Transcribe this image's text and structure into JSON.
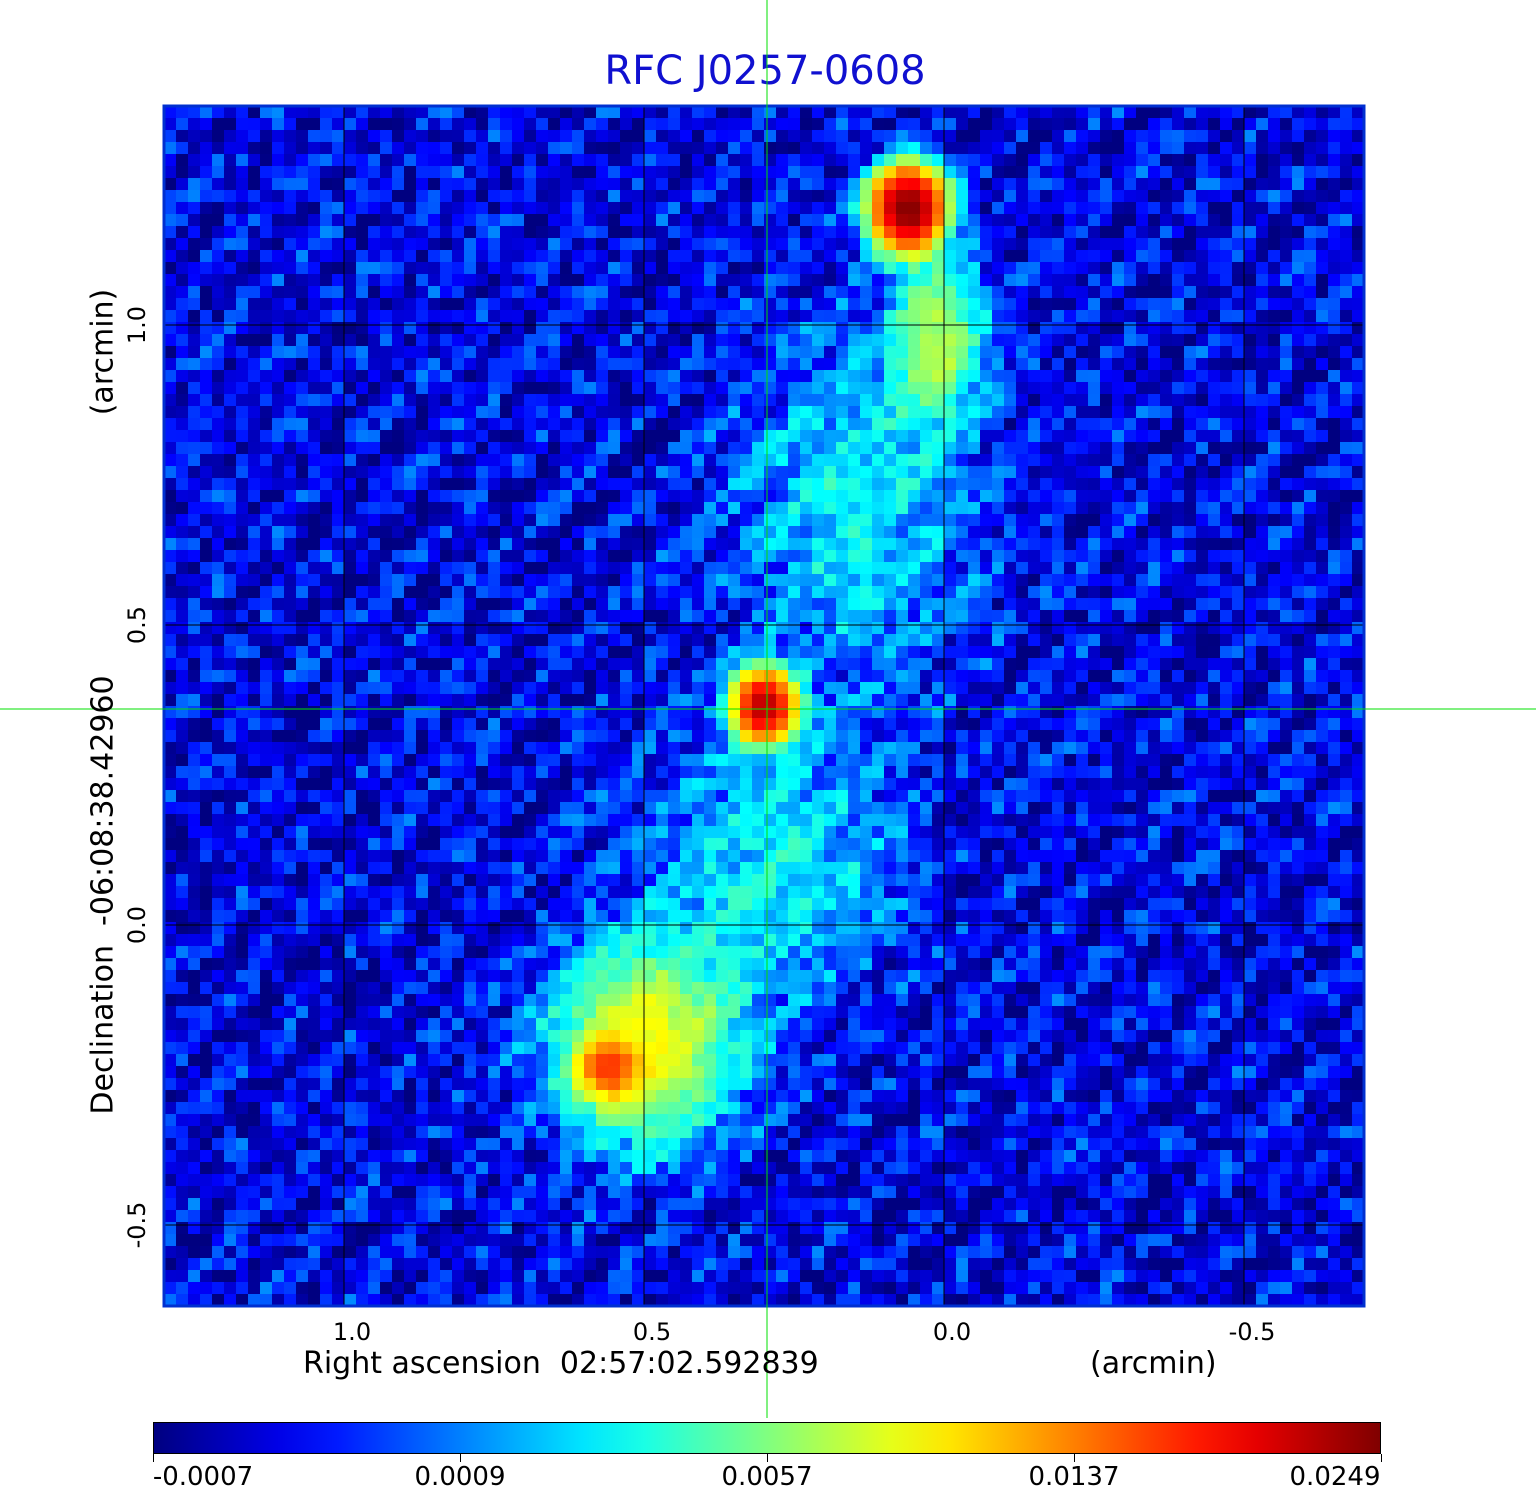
{
  "chart_data": {
    "type": "heatmap",
    "title": "RFC J0257-0608",
    "xlabel": "Right ascension  02:57:02.592839",
    "xunit": "(arcmin)",
    "ylabel": "Declination  -06:08:38.42960",
    "yunit": "(arcmin)",
    "xlim": [
      1.3,
      -0.7
    ],
    "ylim": [
      -0.635,
      1.365
    ],
    "x_ticks": [
      {
        "value": 1.0,
        "label": "1.0"
      },
      {
        "value": 0.5,
        "label": "0.5"
      },
      {
        "value": 0.0,
        "label": "0.0"
      },
      {
        "value": -0.5,
        "label": "-0.5"
      }
    ],
    "y_ticks": [
      {
        "value": 1.0,
        "label": "1.0"
      },
      {
        "value": 0.5,
        "label": "0.5"
      },
      {
        "value": 0.0,
        "label": "0.0"
      },
      {
        "value": -0.5,
        "label": "-0.5"
      }
    ],
    "grid": true,
    "crosshair": {
      "x": 0.295,
      "y": 0.36,
      "color": "#00e000"
    },
    "colormap": "jet",
    "colorbar": {
      "position": "bottom",
      "tick_labels": [
        "-0.0007",
        "0.0009",
        "0.0057",
        "0.0137",
        "0.0249"
      ]
    },
    "sources": [
      {
        "x": 0.06,
        "y": 1.195,
        "peak": 0.0249,
        "sx": 0.035,
        "sy": 0.04
      },
      {
        "x": 0.3,
        "y": 0.365,
        "peak": 0.019,
        "sx": 0.03,
        "sy": 0.035
      },
      {
        "x": 0.56,
        "y": -0.24,
        "peak": 0.0085,
        "sx": 0.03,
        "sy": 0.03
      }
    ],
    "diffuse": [
      {
        "x": 0.5,
        "y": -0.2,
        "peak": 0.0045,
        "sx": 0.1,
        "sy": 0.11
      },
      {
        "x": 0.01,
        "y": 0.98,
        "peak": 0.0032,
        "sx": 0.05,
        "sy": 0.09
      },
      {
        "x": 0.15,
        "y": 0.7,
        "peak": 0.0014,
        "sx": 0.14,
        "sy": 0.2
      },
      {
        "x": 0.28,
        "y": 0.1,
        "peak": 0.0015,
        "sx": 0.14,
        "sy": 0.15
      }
    ],
    "background_level": -0.0002
  }
}
